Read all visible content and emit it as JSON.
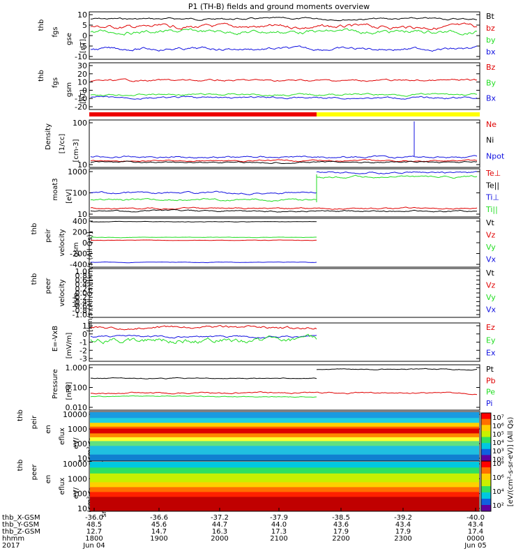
{
  "title": "P1 (TH-B) fields and ground moments overview",
  "colors": {
    "black": "#000000",
    "red": "#e00000",
    "green": "#22dd22",
    "blue": "#1010e0",
    "yellow": "#ffff00",
    "barred": "#ee0000"
  },
  "panels": [
    {
      "ylabel": [
        "thb",
        "fgs",
        "gse",
        "[nT]"
      ],
      "ticks": [
        "10",
        "5",
        "0",
        "-5",
        "-10"
      ],
      "ylim": [
        -10,
        11
      ],
      "legend": [
        [
          "Bt",
          "black"
        ],
        [
          "bz",
          "red"
        ],
        [
          "by",
          "green"
        ],
        [
          "bx",
          "blue"
        ]
      ]
    },
    {
      "ylabel": [
        "thb",
        "fgs",
        "gsm",
        "[nT]"
      ],
      "ticks": [
        "30",
        "20",
        "10",
        "0",
        "-10",
        "-20"
      ],
      "ylim": [
        -25,
        32
      ],
      "legend": [
        [
          "Bz",
          "red"
        ],
        [
          "By",
          "green"
        ],
        [
          "Bx",
          "blue"
        ]
      ]
    },
    {
      "ylabel": [
        "Density",
        "[1/cc]",
        "[cm-3]"
      ],
      "ticks": [
        "100",
        "10"
      ],
      "ylim": [
        5,
        250
      ],
      "log": true,
      "legend": [
        [
          "Ne",
          "red"
        ],
        [
          "Ni",
          "black"
        ],
        [
          "Npot",
          "blue"
        ]
      ]
    },
    {
      "ylabel": [
        "moat3",
        "[eV]"
      ],
      "ticks": [
        "1000",
        "100",
        "10"
      ],
      "ylim": [
        8,
        1500
      ],
      "log": true,
      "legend": [
        [
          "Te⊥",
          "red"
        ],
        [
          "Te||",
          "black"
        ],
        [
          "Ti⊥",
          "blue"
        ],
        [
          "Ti||",
          "green"
        ]
      ]
    },
    {
      "ylabel": [
        "thb",
        "peir",
        "velocity",
        "gsm",
        "[km/s (All Qs)]"
      ],
      "ticks": [
        "400",
        "200",
        "0",
        "-200",
        "-400"
      ],
      "ylim": [
        -400,
        420
      ],
      "legend": [
        [
          "Vt",
          "black"
        ],
        [
          "Vz",
          "red"
        ],
        [
          "Vy",
          "green"
        ],
        [
          "Vx",
          "blue"
        ]
      ]
    },
    {
      "ylabel": [
        "thb",
        "peer",
        "velocity",
        "gsm",
        "[km/s (All Qs)]"
      ],
      "ticks": [
        "1.0",
        "0.8",
        "0.6",
        "0.4",
        "0.2",
        "0.0",
        "-0.2",
        "-0.4",
        "-0.6",
        "-0.8",
        "-1.0"
      ],
      "ylim": [
        -1,
        1
      ],
      "legend": [
        [
          "Vt",
          "black"
        ],
        [
          "Vz",
          "red"
        ],
        [
          "Vy",
          "green"
        ],
        [
          "Vx",
          "blue"
        ]
      ]
    },
    {
      "ylabel": [
        "E=-VxB",
        "[mV/m]"
      ],
      "ticks": [
        "1",
        "0",
        "-1",
        "-2",
        "-3"
      ],
      "ylim": [
        -3,
        1.5
      ],
      "legend": [
        [
          "Ez",
          "red"
        ],
        [
          "Ey",
          "green"
        ],
        [
          "Ex",
          "blue"
        ]
      ]
    },
    {
      "ylabel": [
        "Pressure",
        "[nPa]"
      ],
      "ticks": [
        "1.000",
        "0.100",
        "0.010"
      ],
      "ylim": [
        0.004,
        1.5
      ],
      "log": true,
      "legend": [
        [
          "Pt",
          "black"
        ],
        [
          "Pb",
          "red"
        ],
        [
          "Pe",
          "green"
        ],
        [
          "Pi",
          "blue"
        ]
      ]
    },
    {
      "ylabel": [
        "thb",
        "peir",
        "en",
        "eflux",
        "eV/",
        "(cm²-s-",
        "sr-eV)"
      ],
      "ticks": [
        "10000",
        "1000",
        "100",
        "10"
      ],
      "ylim": [
        5,
        20000
      ],
      "log": true,
      "legend": []
    },
    {
      "ylabel": [
        "thb",
        "peer",
        "en",
        "eflux",
        "eV/",
        "(cm²-s-",
        "sr-eV)"
      ],
      "ticks": [
        "10000",
        "1000",
        "100",
        "10"
      ],
      "ylim": [
        5,
        20000
      ],
      "log": true,
      "legend": []
    }
  ],
  "colorbar": {
    "ticks": [
      "10⁷",
      "10⁶",
      "10⁵",
      "10⁴",
      "10³",
      "10²",
      "10⁸",
      "10⁶",
      "10⁴",
      "10²"
    ],
    "label": "[eV/(cm²-s-sr-eV)] (All Qs)"
  },
  "bottom_axis": {
    "row_labels": [
      "thb_X-GSM",
      "thb_Y-GSM",
      "thb_Z-GSM",
      "hhmm",
      "2017"
    ],
    "columns": [
      [
        "-36.0",
        "48.5",
        "12.7",
        "1800",
        "Jun 04"
      ],
      [
        "-36.6",
        "45.6",
        "14.7",
        "1900",
        ""
      ],
      [
        "-37.2",
        "44.7",
        "16.3",
        "2000",
        ""
      ],
      [
        "-37.9",
        "44.0",
        "17.3",
        "2100",
        ""
      ],
      [
        "-38.5",
        "43.6",
        "17.9",
        "2200",
        ""
      ],
      [
        "-39.2",
        "43.4",
        "17.9",
        "2300",
        ""
      ],
      [
        "-40.0",
        "43.4",
        "17.4",
        "0000",
        "Jun 05"
      ]
    ]
  },
  "chart_data": {
    "type": "line",
    "title": "P1 (TH-B) fields and ground moments overview",
    "x": [
      "1800",
      "1900",
      "2000",
      "2100",
      "2200",
      "2300",
      "0000"
    ],
    "x_range": [
      "Jun 04 1800",
      "Jun 05 0000"
    ],
    "series": [
      {
        "name": "Bt",
        "panel": 0,
        "values": [
          7,
          8,
          8,
          8,
          9,
          9,
          9
        ]
      },
      {
        "name": "bz",
        "panel": 0,
        "values": [
          5,
          4,
          5,
          5,
          6,
          4,
          4
        ]
      },
      {
        "name": "by",
        "panel": 0,
        "values": [
          2,
          3,
          3,
          3,
          3,
          3,
          4
        ]
      },
      {
        "name": "bx",
        "panel": 0,
        "values": [
          -5,
          -7,
          -6,
          -6,
          -7,
          -7,
          -7
        ]
      },
      {
        "name": "Bz",
        "panel": 1,
        "values": [
          15,
          18,
          18,
          18,
          19,
          19,
          18
        ]
      },
      {
        "name": "By",
        "panel": 1,
        "values": [
          -8,
          -3,
          -3,
          -4,
          -3,
          -3,
          -3
        ]
      },
      {
        "name": "Bx",
        "panel": 1,
        "values": [
          -8,
          -9,
          -10,
          -10,
          -10,
          -9,
          -10
        ]
      },
      {
        "name": "Npot",
        "panel": 2,
        "values": [
          12,
          12,
          13,
          14,
          14,
          14,
          13
        ]
      },
      {
        "name": "Ti||",
        "panel": 3,
        "values": [
          60,
          60,
          65,
          60,
          600,
          600,
          600
        ]
      },
      {
        "name": "Ti⊥",
        "panel": 3,
        "values": [
          110,
          100,
          100,
          100,
          800,
          800,
          800
        ]
      },
      {
        "name": "Vt",
        "panel": 4,
        "values": [
          345,
          345,
          345,
          345,
          null,
          null,
          null
        ]
      },
      {
        "name": "Vx",
        "panel": 4,
        "values": [
          -345,
          -345,
          -345,
          -345,
          null,
          null,
          null
        ]
      },
      {
        "name": "Pt",
        "panel": 7,
        "values": [
          0.15,
          0.18,
          0.18,
          0.18,
          0.65,
          0.7,
          0.6
        ]
      }
    ]
  }
}
